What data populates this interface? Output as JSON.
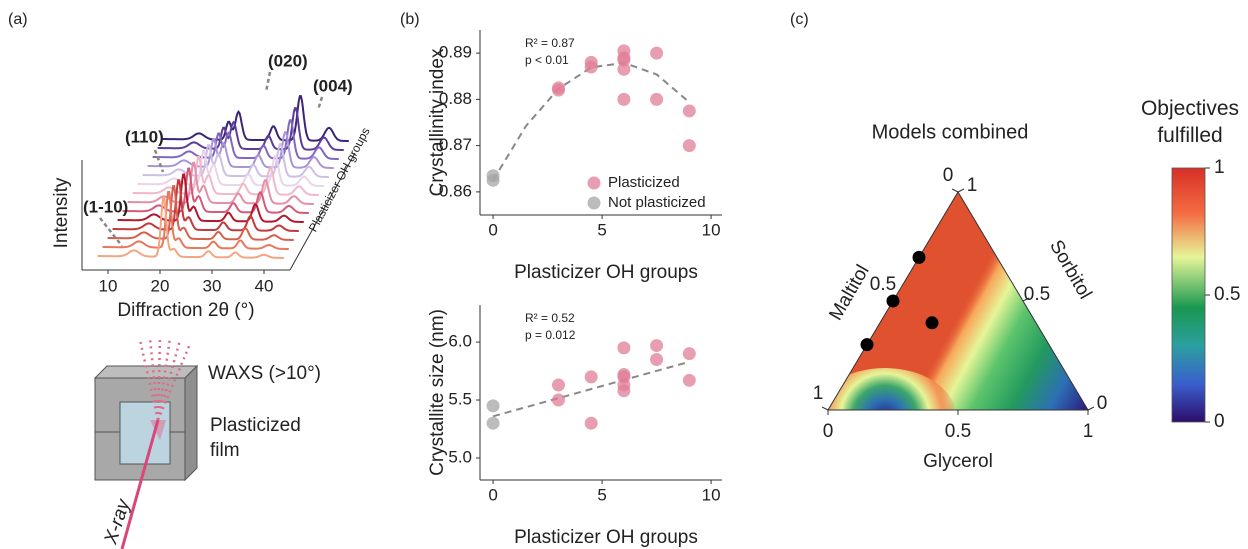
{
  "panel_labels": [
    "(a)",
    "(b)",
    "(c)"
  ],
  "schematic": {
    "waxs": "WAXS (>10°)",
    "film": "Plasticized film",
    "beam": "X-ray"
  },
  "chart_data": [
    {
      "type": "waterfall",
      "xlabel": "Diffraction 2θ (°)",
      "ylabel": "Intensity",
      "zlabel": "Plasticizer OH groups",
      "xlim": [
        5,
        45
      ],
      "xticks": [
        10,
        20,
        30,
        40
      ],
      "annotations": [
        "(1-10)",
        "(110)",
        "(020)",
        "(004)"
      ],
      "colors": [
        "#f4a582",
        "#e8775c",
        "#d6604d",
        "#c23b3b",
        "#b2182b",
        "#d45a78",
        "#e58fa6",
        "#f0b8c8",
        "#e9d4ea",
        "#cdbfe6",
        "#a995d6",
        "#8068c0",
        "#5e3c99",
        "#3a2478"
      ]
    },
    {
      "type": "scatter",
      "ylabel": "Crystallinity index",
      "xlabel": "Plasticizer OH groups",
      "xlim": [
        -0.6,
        10.5
      ],
      "xticks": [
        0,
        5,
        10
      ],
      "ylim": [
        0.855,
        0.895
      ],
      "yticks": [
        0.86,
        0.87,
        0.88,
        0.89
      ],
      "annotations": [
        "R² = 0.87",
        "p < 0.01"
      ],
      "legend": "lower right",
      "series": [
        {
          "name": "Plasticized",
          "color": "#e07d97",
          "x": [
            3,
            3,
            4.5,
            4.5,
            6,
            6,
            6,
            6,
            6,
            7.5,
            7.5,
            9,
            9
          ],
          "values": [
            0.882,
            0.8825,
            0.888,
            0.887,
            0.8905,
            0.889,
            0.8885,
            0.8865,
            0.88,
            0.89,
            0.88,
            0.8775,
            0.87
          ]
        },
        {
          "name": "Not plasticized",
          "color": "#a6a6a6",
          "x": [
            0,
            0
          ],
          "values": [
            0.8635,
            0.8625
          ]
        }
      ],
      "fit": {
        "color": "#888888",
        "x": [
          0,
          1.5,
          3,
          4.5,
          6,
          7.5,
          9
        ],
        "values": [
          0.8625,
          0.8742,
          0.8823,
          0.8869,
          0.8879,
          0.8854,
          0.8794
        ]
      }
    },
    {
      "type": "scatter",
      "ylabel": "Crystallite size (nm)",
      "xlabel": "Plasticizer OH groups",
      "xlim": [
        -0.6,
        10.5
      ],
      "xticks": [
        0,
        5,
        10
      ],
      "ylim": [
        4.81,
        6.32
      ],
      "yticks": [
        {
          "value": 5,
          "label": "5.0"
        },
        5.5,
        {
          "value": 6,
          "label": "6.0"
        }
      ],
      "annotations": [
        "R² = 0.52",
        "p = 0.012"
      ],
      "series": [
        {
          "color": "#e07d97",
          "x": [
            3,
            3,
            4.5,
            4.5,
            6,
            6,
            6,
            6,
            6,
            7.5,
            7.5,
            9,
            9
          ],
          "values": [
            5.63,
            5.5,
            5.7,
            5.3,
            5.95,
            5.72,
            5.7,
            5.63,
            5.58,
            5.97,
            5.85,
            5.9,
            5.67
          ]
        },
        {
          "color": "#a6a6a6",
          "x": [
            0,
            0
          ],
          "values": [
            5.45,
            5.3
          ]
        }
      ],
      "fit": {
        "color": "#888888",
        "x": [
          0,
          9
        ],
        "values": [
          5.36,
          5.83
        ]
      }
    },
    {
      "type": "ternary",
      "title": "Models combined",
      "axes": {
        "bottom": "Glycerol",
        "left": "Maltitol",
        "right": "Sorbitol"
      },
      "ticks": {
        "bottom": [
          0,
          0.5,
          1
        ],
        "left": [
          0,
          0.5,
          1
        ],
        "right": [
          0,
          0.5,
          1
        ]
      },
      "points": {
        "color": "#000000",
        "glycerol": [
          0,
          0,
          0,
          0.2
        ],
        "sorbitol": [
          0.7,
          0.5,
          0.3,
          0.4
        ],
        "maltitol": [
          0.3,
          0.5,
          0.7,
          0.4
        ]
      },
      "colorbar": {
        "title": "Objectives fulfilled",
        "lim": [
          0,
          1
        ],
        "ticks": [
          0,
          0.5,
          1
        ]
      }
    }
  ]
}
